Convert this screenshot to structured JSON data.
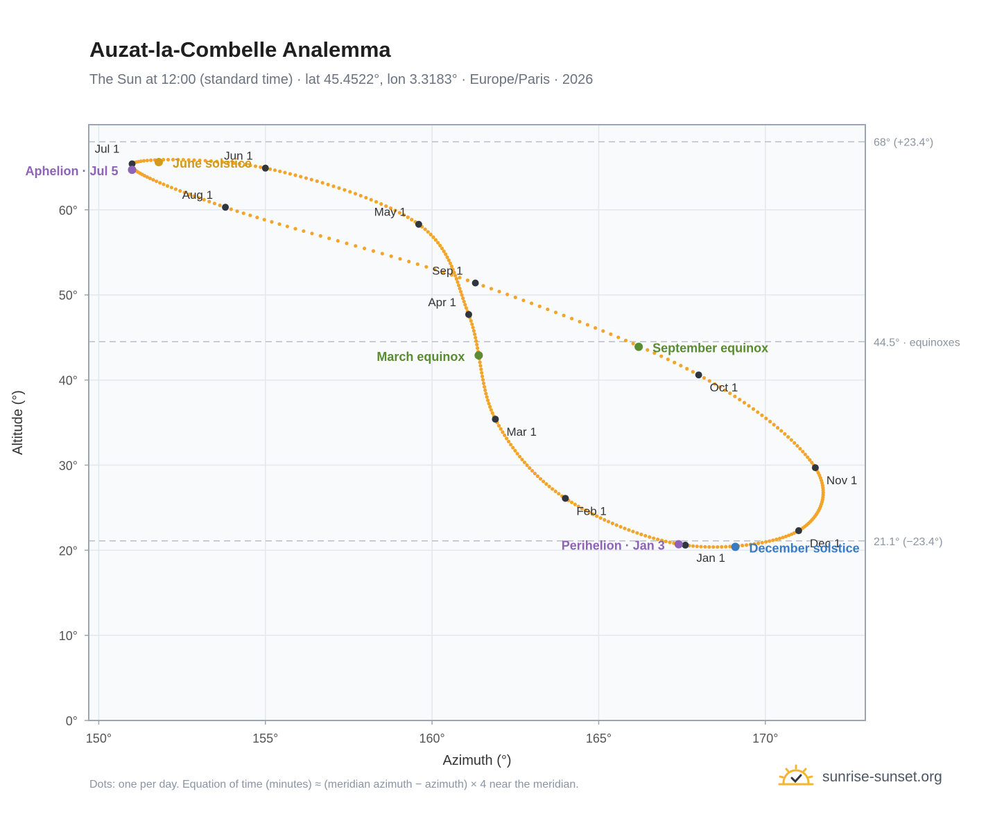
{
  "header": {
    "title": "Auzat-la-Combelle Analemma",
    "subtitle": "The Sun at 12:00 (standard time) · lat 45.4522°, lon 3.3183° · Europe/Paris · 2026"
  },
  "footer": {
    "note": "Dots: one per day. Equation of time (minutes) ≈ (meridian azimuth − azimuth) × 4 near the meridian.",
    "brand": "sunrise-sunset.org"
  },
  "colors": {
    "curve": "#f2a52a",
    "month_dot": "#2f3640",
    "solstice_june": "#d09a1a",
    "solstice_december": "#3b7bc4",
    "equinox": "#5a8c31",
    "apsis": "#8e63b8",
    "plot_bg": "#f8fafc",
    "grid": "#e2e8ef",
    "reference": "#b7bec9"
  },
  "chart_data": {
    "type": "scatter",
    "xlabel": "Azimuth (°)",
    "ylabel": "Altitude (°)",
    "xlim": [
      149.7,
      173.0
    ],
    "ylim": [
      0,
      70
    ],
    "x_ticks": [
      150,
      155,
      160,
      165,
      170
    ],
    "x_tick_labels": [
      "150°",
      "155°",
      "160°",
      "165°",
      "170°"
    ],
    "y_ticks": [
      0,
      10,
      20,
      30,
      40,
      50,
      60
    ],
    "y_tick_labels": [
      "0°",
      "10°",
      "20°",
      "30°",
      "40°",
      "50°",
      "60°"
    ],
    "grid": true,
    "reference_lines": [
      {
        "y": 68.0,
        "label": "68° (+23.4°)"
      },
      {
        "y": 44.5,
        "label": "44.5° · equinoxes"
      },
      {
        "y": 21.1,
        "label": "21.1° (−23.4°)"
      }
    ],
    "months": [
      {
        "label": "Jan 1",
        "azimuth": 167.6,
        "altitude": 20.6
      },
      {
        "label": "Feb 1",
        "azimuth": 164.0,
        "altitude": 26.1
      },
      {
        "label": "Mar 1",
        "azimuth": 161.9,
        "altitude": 35.4
      },
      {
        "label": "Apr 1",
        "azimuth": 161.1,
        "altitude": 47.7
      },
      {
        "label": "May 1",
        "azimuth": 159.6,
        "altitude": 58.3
      },
      {
        "label": "Jun 1",
        "azimuth": 155.0,
        "altitude": 64.9
      },
      {
        "label": "Jul 1",
        "azimuth": 151.0,
        "altitude": 65.4
      },
      {
        "label": "Aug 1",
        "azimuth": 153.8,
        "altitude": 60.3
      },
      {
        "label": "Sep 1",
        "azimuth": 161.3,
        "altitude": 51.4
      },
      {
        "label": "Oct 1",
        "azimuth": 168.0,
        "altitude": 40.6
      },
      {
        "label": "Nov 1",
        "azimuth": 171.5,
        "altitude": 29.7
      },
      {
        "label": "Dec 1",
        "azimuth": 171.0,
        "altitude": 22.3
      }
    ],
    "events": [
      {
        "label": "June solstice",
        "azimuth": 151.8,
        "altitude": 65.6,
        "kind": "solstice_june"
      },
      {
        "label": "December solstice",
        "azimuth": 169.1,
        "altitude": 20.4,
        "kind": "solstice_december"
      },
      {
        "label": "March equinox",
        "azimuth": 161.4,
        "altitude": 42.9,
        "kind": "equinox"
      },
      {
        "label": "September equinox",
        "azimuth": 166.2,
        "altitude": 43.9,
        "kind": "equinox"
      },
      {
        "label": "Aphelion · Jul 5",
        "azimuth": 151.0,
        "altitude": 64.7,
        "kind": "apsis"
      },
      {
        "label": "Perihelion · Jan 3",
        "azimuth": 167.4,
        "altitude": 20.7,
        "kind": "apsis"
      }
    ]
  }
}
